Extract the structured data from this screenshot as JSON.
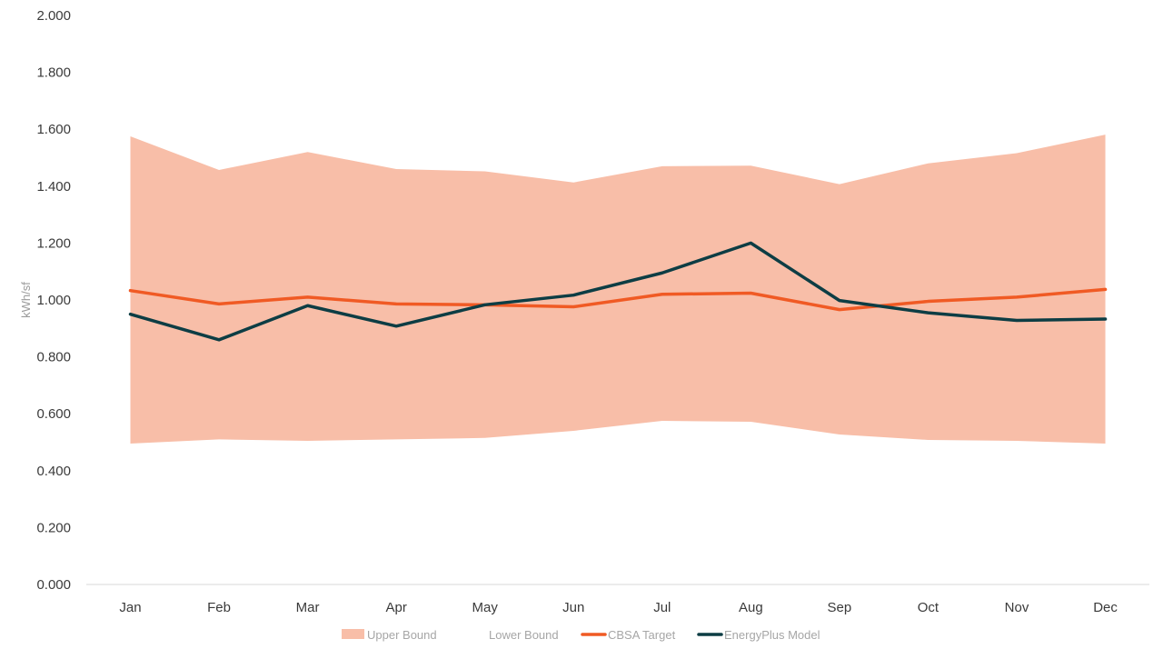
{
  "chart_data": {
    "type": "line",
    "title": "",
    "xlabel": "",
    "ylabel": "kWh/sf",
    "ylim": [
      0,
      2
    ],
    "y_tick_step": 0.2,
    "y_tick_decimals": 3,
    "grid": false,
    "legend_position": "bottom",
    "categories": [
      "Jan",
      "Feb",
      "Mar",
      "Apr",
      "May",
      "Jun",
      "Jul",
      "Aug",
      "Sep",
      "Oct",
      "Nov",
      "Dec"
    ],
    "series": [
      {
        "name": "Upper Bound",
        "kind": "band-upper",
        "color": "#f8bea8",
        "values": [
          1.575,
          1.457,
          1.52,
          1.46,
          1.452,
          1.413,
          1.47,
          1.472,
          1.407,
          1.48,
          1.516,
          1.581
        ]
      },
      {
        "name": "Lower Bound",
        "kind": "band-lower",
        "color": "#ffffff",
        "values": [
          0.495,
          0.51,
          0.505,
          0.51,
          0.515,
          0.54,
          0.575,
          0.572,
          0.527,
          0.508,
          0.505,
          0.495
        ]
      },
      {
        "name": "CBSA Target",
        "kind": "line",
        "color": "#f05a24",
        "values": [
          1.033,
          0.986,
          1.01,
          0.986,
          0.983,
          0.976,
          1.02,
          1.024,
          0.966,
          0.995,
          1.01,
          1.037
        ]
      },
      {
        "name": "EnergyPlus Model",
        "kind": "line",
        "color": "#0d3d44",
        "values": [
          0.95,
          0.86,
          0.98,
          0.908,
          0.983,
          1.017,
          1.095,
          1.2,
          0.998,
          0.955,
          0.928,
          0.933
        ]
      }
    ]
  }
}
